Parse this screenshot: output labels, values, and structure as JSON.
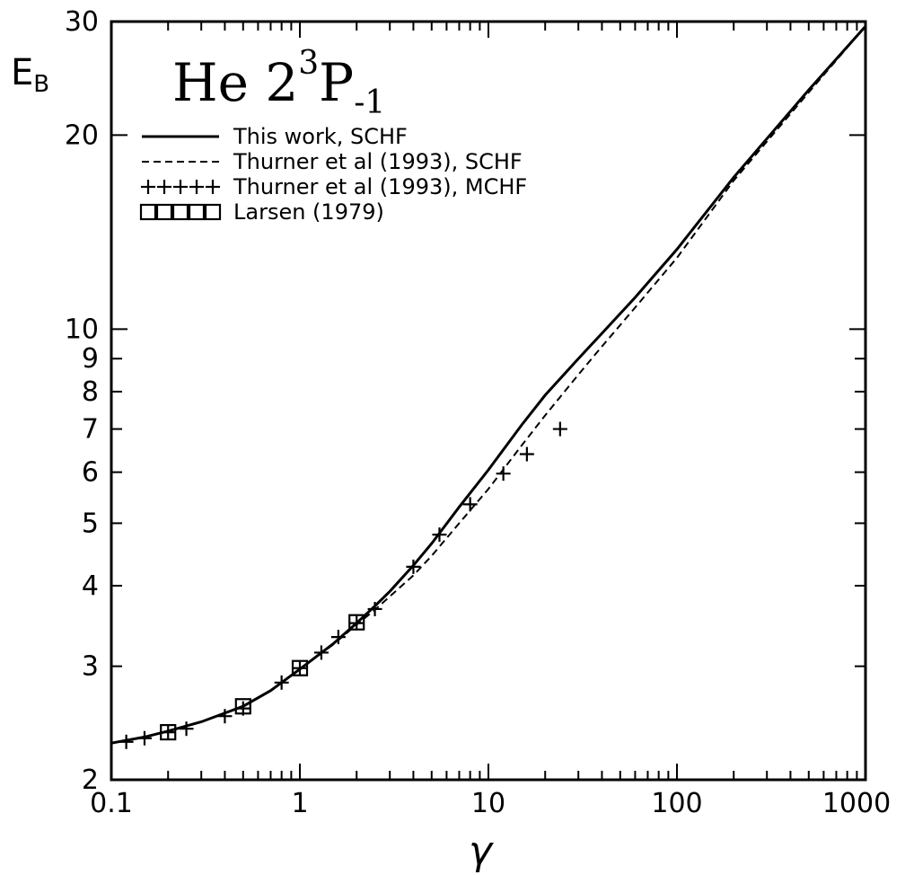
{
  "chart_data": {
    "type": "line",
    "title": "He 2",
    "title_sup": "3",
    "title_main2": "P",
    "title_sub": "-1",
    "xlabel": "γ",
    "ylabel": "E",
    "ylabel_sub": "B",
    "x_scale": "log",
    "y_scale": "log",
    "xlim": [
      0.1,
      1000
    ],
    "ylim": [
      2,
      30
    ],
    "x_tick_labels": [
      {
        "v": 0.1,
        "t": "0.1"
      },
      {
        "v": 1,
        "t": "1"
      },
      {
        "v": 10,
        "t": "10"
      },
      {
        "v": 100,
        "t": "100"
      },
      {
        "v": 1000,
        "t": "1000"
      }
    ],
    "y_tick_labels": [
      {
        "v": 2,
        "t": "2"
      },
      {
        "v": 3,
        "t": "3"
      },
      {
        "v": 4,
        "t": "4"
      },
      {
        "v": 5,
        "t": "5"
      },
      {
        "v": 6,
        "t": "6"
      },
      {
        "v": 7,
        "t": "7"
      },
      {
        "v": 8,
        "t": "8"
      },
      {
        "v": 9,
        "t": "9"
      },
      {
        "v": 10,
        "t": "10"
      },
      {
        "v": 20,
        "t": "20"
      },
      {
        "v": 30,
        "t": "30"
      }
    ],
    "grid": false,
    "legend_position": "top-left",
    "series": [
      {
        "name": "This work, SCHF",
        "style": "solid",
        "marker": "none",
        "x": [
          0.1,
          0.15,
          0.2,
          0.3,
          0.5,
          0.7,
          1,
          1.5,
          2,
          2.5,
          3,
          4,
          5,
          7,
          10,
          15,
          20,
          30,
          40,
          60,
          100,
          200,
          500,
          1000
        ],
        "y": [
          2.28,
          2.33,
          2.38,
          2.46,
          2.6,
          2.75,
          2.97,
          3.25,
          3.5,
          3.72,
          3.92,
          4.3,
          4.65,
          5.3,
          6.05,
          7.1,
          7.9,
          9.0,
          9.85,
          11.2,
          13.3,
          17.2,
          23.5,
          29.5
        ]
      },
      {
        "name": "Thurner et al (1993), SCHF",
        "style": "dashed",
        "marker": "none",
        "x": [
          1,
          1.5,
          2,
          2.5,
          3,
          4,
          5,
          7,
          10,
          15,
          20,
          30,
          40,
          60,
          100,
          200,
          500,
          1000
        ],
        "y": [
          2.97,
          3.24,
          3.48,
          3.67,
          3.85,
          4.15,
          4.45,
          5.0,
          5.65,
          6.6,
          7.35,
          8.5,
          9.4,
          10.8,
          12.9,
          17.0,
          23.3,
          29.5
        ]
      },
      {
        "name": "Thurner et al (1993), MCHF",
        "style": "none",
        "marker": "plus",
        "x": [
          0.12,
          0.15,
          0.2,
          0.25,
          0.4,
          0.5,
          0.8,
          1,
          1.3,
          1.6,
          2,
          2.5,
          4,
          5.5,
          8,
          12,
          16,
          24
        ],
        "y": [
          2.29,
          2.32,
          2.37,
          2.4,
          2.51,
          2.58,
          2.83,
          2.98,
          3.15,
          3.33,
          3.5,
          3.68,
          4.28,
          4.8,
          5.35,
          5.97,
          6.4,
          7.0
        ]
      },
      {
        "name": "Larsen (1979)",
        "style": "none",
        "marker": "square",
        "x": [
          0.2,
          0.5,
          1,
          2
        ],
        "y": [
          2.37,
          2.6,
          2.98,
          3.51
        ]
      }
    ]
  }
}
